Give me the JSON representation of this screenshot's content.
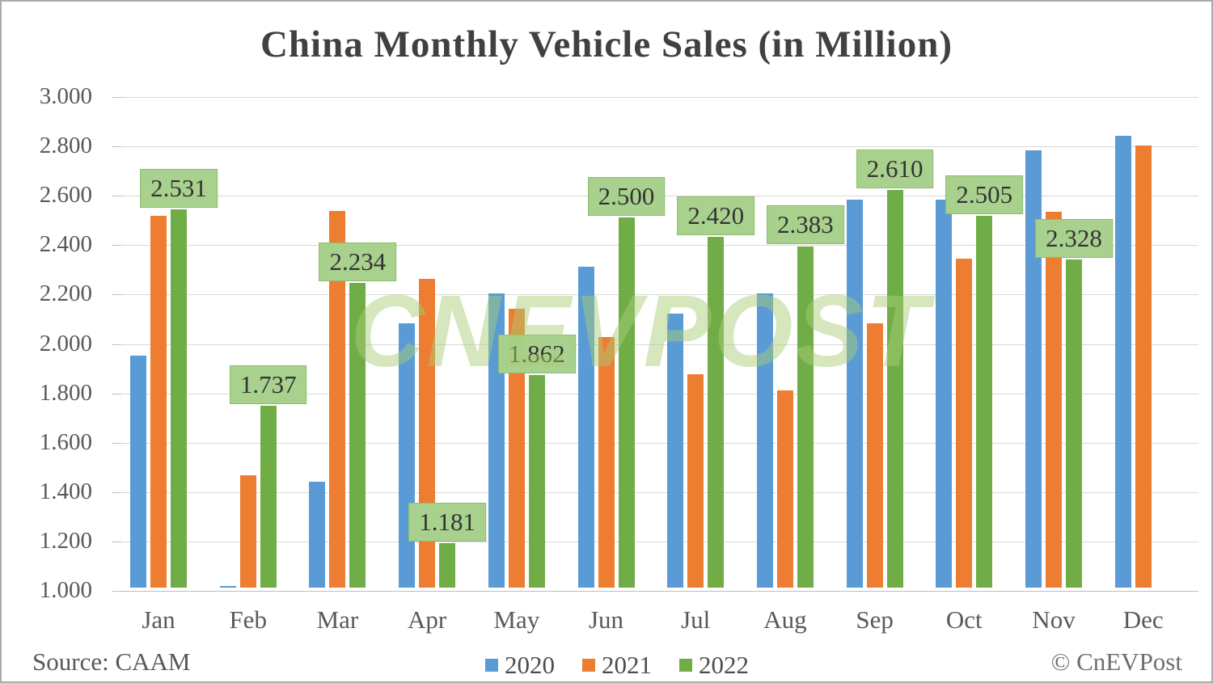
{
  "title": "China Monthly Vehicle Sales (in Million)",
  "watermark": "CnEVPost",
  "footer": {
    "source": "Source: CAAM",
    "copyright": "© CnEVPost"
  },
  "colors": {
    "series_2020_blue": "#5B9BD5",
    "series_2021_orange": "#ED7D31",
    "series_2022_green": "#70AD47",
    "data_label_badge_bg": "#A9D18E",
    "data_label_badge_border": "#8CBD6D",
    "data_label_text": "#333333",
    "gridline": "#D9D9D9",
    "axis_text": "#595959",
    "title_text": "#404040",
    "watermark_green": "rgba(170,205,118,0.48)"
  },
  "chart_data": {
    "type": "bar",
    "title": "China Monthly Vehicle Sales (in Million)",
    "categories": [
      "Jan",
      "Feb",
      "Mar",
      "Apr",
      "May",
      "Jun",
      "Jul",
      "Aug",
      "Sep",
      "Oct",
      "Nov",
      "Dec"
    ],
    "series": [
      {
        "name": "2020",
        "color": "#5B9BD5",
        "values": [
          1.94,
          1.0,
          1.43,
          2.07,
          2.19,
          2.3,
          2.11,
          2.19,
          2.57,
          2.57,
          2.77,
          2.83
        ]
      },
      {
        "name": "2021",
        "color": "#ED7D31",
        "values": [
          2.505,
          1.455,
          2.525,
          2.25,
          2.13,
          2.015,
          1.865,
          1.8,
          2.07,
          2.333,
          2.522,
          2.79
        ]
      },
      {
        "name": "2022",
        "color": "#70AD47",
        "values": [
          2.531,
          1.737,
          2.234,
          1.181,
          1.862,
          2.5,
          2.42,
          2.383,
          2.61,
          2.505,
          2.328,
          null
        ],
        "data_labels": [
          "2.531",
          "1.737",
          "2.234",
          "1.181",
          "1.862",
          "2.500",
          "2.420",
          "2.383",
          "2.610",
          "2.505",
          "2.328",
          null
        ]
      }
    ],
    "xlabel": "",
    "ylabel": "",
    "ylim": [
      1.0,
      3.0
    ],
    "ytick_step": 0.2,
    "ytick_labels": [
      "3.000",
      "2.800",
      "2.600",
      "2.400",
      "2.200",
      "2.000",
      "1.800",
      "1.600",
      "1.400",
      "1.200",
      "1.000"
    ],
    "grid": true,
    "legend_position": "bottom",
    "notes": "2020 Feb bar is clipped at the y-axis minimum (renders as a sliver at the baseline); 2022 Dec has no bar; only the 2022 series carries data-label badges."
  }
}
